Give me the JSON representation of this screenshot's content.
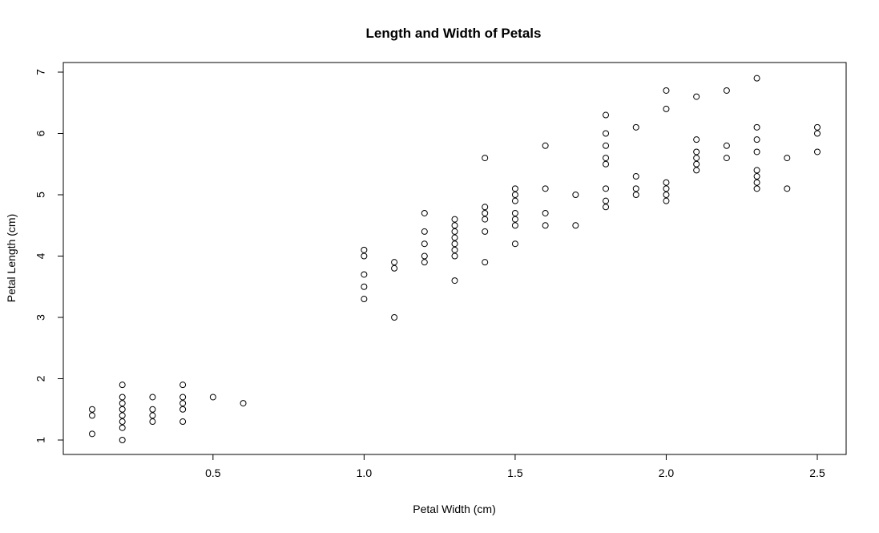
{
  "chart_data": {
    "type": "scatter",
    "title": "Length and Width of Petals",
    "xlabel": "Petal Width (cm)",
    "ylabel": "Petal Length (cm)",
    "xlim": [
      0.1,
      2.5
    ],
    "ylim": [
      1.0,
      7.0
    ],
    "x_ticks": [
      0.5,
      1.0,
      1.5,
      2.0,
      2.5
    ],
    "x_tick_labels": [
      "0.5",
      "1.0",
      "1.5",
      "2.0",
      "2.5"
    ],
    "y_ticks": [
      1,
      2,
      3,
      4,
      5,
      6,
      7
    ],
    "y_tick_labels": [
      "1",
      "2",
      "3",
      "4",
      "5",
      "6",
      "7"
    ],
    "grid": false,
    "marker": "open-circle",
    "points": [
      [
        0.1,
        1.1
      ],
      [
        0.1,
        1.4
      ],
      [
        0.1,
        1.5
      ],
      [
        0.2,
        1.0
      ],
      [
        0.2,
        1.2
      ],
      [
        0.2,
        1.3
      ],
      [
        0.2,
        1.4
      ],
      [
        0.2,
        1.5
      ],
      [
        0.2,
        1.6
      ],
      [
        0.2,
        1.7
      ],
      [
        0.2,
        1.9
      ],
      [
        0.3,
        1.3
      ],
      [
        0.3,
        1.4
      ],
      [
        0.3,
        1.5
      ],
      [
        0.3,
        1.7
      ],
      [
        0.4,
        1.3
      ],
      [
        0.4,
        1.5
      ],
      [
        0.4,
        1.6
      ],
      [
        0.4,
        1.7
      ],
      [
        0.4,
        1.9
      ],
      [
        0.5,
        1.7
      ],
      [
        0.6,
        1.6
      ],
      [
        1.0,
        3.3
      ],
      [
        1.0,
        3.5
      ],
      [
        1.0,
        3.7
      ],
      [
        1.0,
        4.0
      ],
      [
        1.0,
        4.1
      ],
      [
        1.1,
        3.0
      ],
      [
        1.1,
        3.8
      ],
      [
        1.1,
        3.9
      ],
      [
        1.2,
        3.9
      ],
      [
        1.2,
        4.0
      ],
      [
        1.2,
        4.2
      ],
      [
        1.2,
        4.4
      ],
      [
        1.2,
        4.7
      ],
      [
        1.3,
        3.6
      ],
      [
        1.3,
        4.0
      ],
      [
        1.3,
        4.1
      ],
      [
        1.3,
        4.2
      ],
      [
        1.3,
        4.3
      ],
      [
        1.3,
        4.4
      ],
      [
        1.3,
        4.5
      ],
      [
        1.3,
        4.6
      ],
      [
        1.4,
        3.9
      ],
      [
        1.4,
        4.4
      ],
      [
        1.4,
        4.6
      ],
      [
        1.4,
        4.7
      ],
      [
        1.4,
        4.8
      ],
      [
        1.4,
        5.6
      ],
      [
        1.5,
        4.2
      ],
      [
        1.5,
        4.5
      ],
      [
        1.5,
        4.6
      ],
      [
        1.5,
        4.7
      ],
      [
        1.5,
        4.9
      ],
      [
        1.5,
        5.0
      ],
      [
        1.5,
        5.1
      ],
      [
        1.6,
        4.5
      ],
      [
        1.6,
        4.7
      ],
      [
        1.6,
        5.1
      ],
      [
        1.6,
        5.8
      ],
      [
        1.7,
        4.5
      ],
      [
        1.7,
        5.0
      ],
      [
        1.8,
        4.8
      ],
      [
        1.8,
        4.9
      ],
      [
        1.8,
        5.1
      ],
      [
        1.8,
        5.5
      ],
      [
        1.8,
        5.6
      ],
      [
        1.8,
        5.8
      ],
      [
        1.8,
        6.0
      ],
      [
        1.8,
        6.3
      ],
      [
        1.9,
        5.0
      ],
      [
        1.9,
        5.1
      ],
      [
        1.9,
        5.3
      ],
      [
        1.9,
        6.1
      ],
      [
        2.0,
        4.9
      ],
      [
        2.0,
        5.0
      ],
      [
        2.0,
        5.1
      ],
      [
        2.0,
        5.2
      ],
      [
        2.0,
        6.4
      ],
      [
        2.0,
        6.7
      ],
      [
        2.1,
        5.4
      ],
      [
        2.1,
        5.5
      ],
      [
        2.1,
        5.6
      ],
      [
        2.1,
        5.7
      ],
      [
        2.1,
        5.9
      ],
      [
        2.1,
        6.6
      ],
      [
        2.2,
        5.6
      ],
      [
        2.2,
        5.8
      ],
      [
        2.2,
        6.7
      ],
      [
        2.3,
        5.1
      ],
      [
        2.3,
        5.2
      ],
      [
        2.3,
        5.3
      ],
      [
        2.3,
        5.4
      ],
      [
        2.3,
        5.7
      ],
      [
        2.3,
        5.9
      ],
      [
        2.3,
        6.1
      ],
      [
        2.3,
        6.9
      ],
      [
        2.4,
        5.1
      ],
      [
        2.4,
        5.6
      ],
      [
        2.5,
        5.7
      ],
      [
        2.5,
        6.0
      ],
      [
        2.5,
        6.1
      ]
    ]
  }
}
